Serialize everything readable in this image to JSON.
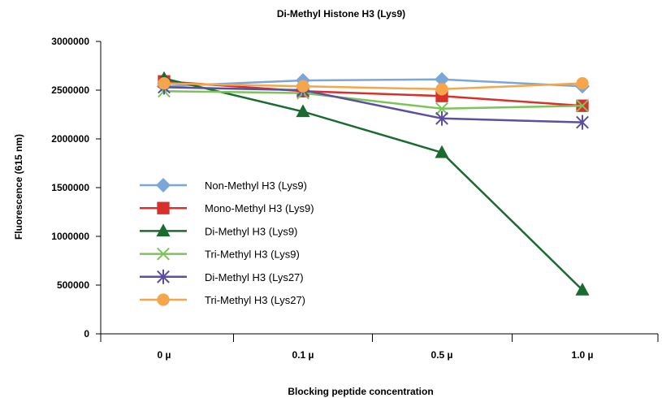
{
  "chart_data": {
    "type": "line",
    "title": "Di-Methyl Histone H3 (Lys9)",
    "xlabel": "Blocking peptide concentration",
    "ylabel": "Fluorescence (615 nm)",
    "categories": [
      "0 µ",
      "0.1 µ",
      "0.5 µ",
      "1.0 µ"
    ],
    "ylim": [
      0,
      3000000
    ],
    "yticks": [
      0,
      500000,
      1000000,
      1500000,
      2000000,
      2500000,
      3000000
    ],
    "ytick_labels": [
      "0",
      "500000",
      "1000000",
      "1500000",
      "2000000",
      "2500000",
      "3000000"
    ],
    "grid": false,
    "legend_position": "left",
    "series": [
      {
        "name": "Non-Methyl H3 (Lys9)",
        "values": [
          2540000,
          2600000,
          2610000,
          2540000
        ],
        "color": "#7aa6d8",
        "marker": "diamond"
      },
      {
        "name": "Mono-Methyl H3 (Lys9)",
        "values": [
          2590000,
          2490000,
          2440000,
          2340000
        ],
        "color": "#d9302c",
        "marker": "square"
      },
      {
        "name": "Di-Methyl H3 (Lys9)",
        "values": [
          2620000,
          2280000,
          1860000,
          450000
        ],
        "color": "#1a6b30",
        "marker": "triangle"
      },
      {
        "name": "Tri-Methyl H3 (Lys9)",
        "values": [
          2490000,
          2470000,
          2310000,
          2340000
        ],
        "color": "#7cc45a",
        "marker": "x"
      },
      {
        "name": "Di-Methyl H3 (Lys27)",
        "values": [
          2530000,
          2500000,
          2210000,
          2170000
        ],
        "color": "#5a4fa0",
        "marker": "asterisk"
      },
      {
        "name": "Tri-Methyl H3 (Lys27)",
        "values": [
          2570000,
          2540000,
          2510000,
          2570000
        ],
        "color": "#f5a54a",
        "marker": "circle"
      }
    ]
  }
}
